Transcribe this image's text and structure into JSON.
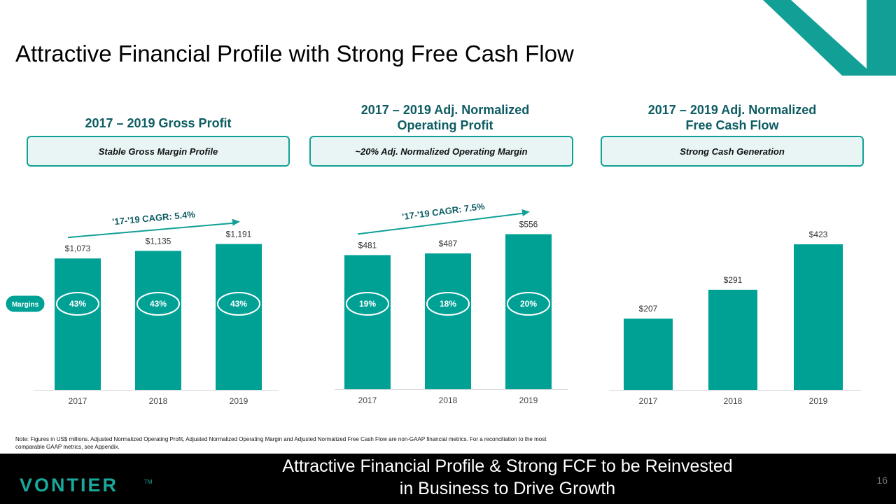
{
  "title": "Attractive Financial Profile with Strong Free Cash Flow",
  "colors": {
    "bar": "#00a195",
    "accent": "#12a096",
    "title": "#0d5c63",
    "corner": "#12a096"
  },
  "panels": [
    {
      "title_lines": [
        "2017 – 2019 Gross Profit"
      ],
      "pill": "Stable Gross Margin Profile"
    },
    {
      "title_lines": [
        "2017 – 2019 Adj. Normalized",
        "Operating Profit"
      ],
      "pill": "~20% Adj. Normalized Operating Margin"
    },
    {
      "title_lines": [
        "2017 – 2019 Adj. Normalized",
        "Free Cash Flow"
      ],
      "pill": "Strong Cash Generation"
    }
  ],
  "margins_label": "Margins",
  "chart_data": [
    {
      "type": "bar",
      "categories": [
        "2017",
        "2018",
        "2019"
      ],
      "values": [
        1073,
        1135,
        1191
      ],
      "value_labels": [
        "$1,073",
        "$1,135",
        "$1,191"
      ],
      "margins": [
        "43%",
        "43%",
        "43%"
      ],
      "cagr": "'17-'19 CAGR: 5.4%"
    },
    {
      "type": "bar",
      "categories": [
        "2017",
        "2018",
        "2019"
      ],
      "values": [
        481,
        487,
        556
      ],
      "value_labels": [
        "$481",
        "$487",
        "$556"
      ],
      "margins": [
        "19%",
        "18%",
        "20%"
      ],
      "cagr": "'17-'19 CAGR: 7.5%"
    },
    {
      "type": "bar",
      "categories": [
        "2017",
        "2018",
        "2019"
      ],
      "values": [
        207,
        291,
        423
      ],
      "value_labels": [
        "$207",
        "$291",
        "$423"
      ],
      "margins": [],
      "cagr": ""
    }
  ],
  "note": "Note: Figures in US$ millions. Adjusted Normalized Operating Profit, Adjusted Normalized Operating Margin and Adjusted Normalized Free Cash Flow are non-GAAP financial metrics. For a reconciliation to the most comparable GAAP metrics, see Appendix.",
  "footer": {
    "message_lines": [
      "Attractive Financial Profile & Strong FCF to be Reinvested",
      "in Business to Drive Growth"
    ],
    "logo": "VONTIER",
    "logo_tm": "TM",
    "page_number": "16"
  }
}
